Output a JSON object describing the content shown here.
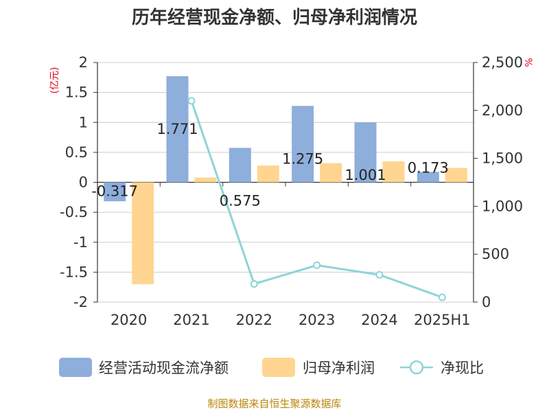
{
  "chart_data": {
    "type": "bar",
    "title": "历年经营现金净额、归母净利润情况",
    "categories": [
      "2020",
      "2021",
      "2022",
      "2023",
      "2024",
      "2025H1"
    ],
    "series": [
      {
        "name": "经营活动现金流净额",
        "kind": "bar",
        "axis": "left",
        "color": "#8eaedb",
        "values": [
          -0.317,
          1.771,
          0.575,
          1.275,
          1.001,
          0.173
        ],
        "labels": [
          "-0.317",
          "1.771",
          "0.575",
          "1.275",
          "1.001",
          "0.173"
        ]
      },
      {
        "name": "归母净利润",
        "kind": "bar",
        "axis": "left",
        "color": "#ffd591",
        "values": [
          -1.7,
          0.08,
          0.28,
          0.32,
          0.35,
          0.24
        ]
      },
      {
        "name": "净现比",
        "kind": "line",
        "axis": "right",
        "color": "#8dd4d8",
        "values": [
          null,
          2100,
          190,
          385,
          285,
          50
        ]
      }
    ],
    "left_axis": {
      "unit": "(亿元)",
      "min": -2,
      "max": 2,
      "ticks": [
        2,
        1.5,
        1,
        0.5,
        0,
        -0.5,
        -1,
        -1.5,
        -2
      ],
      "tick_labels": [
        "2",
        "1.5",
        "1",
        "0.5",
        "0",
        "-0.5",
        "-1",
        "-1.5",
        "-2"
      ]
    },
    "right_axis": {
      "unit": "%",
      "min": 0,
      "max": 2500,
      "ticks": [
        2500,
        2000,
        1500,
        1000,
        500,
        0
      ],
      "tick_labels": [
        "2,500",
        "2,000",
        "1,500",
        "1,000",
        "500",
        "0"
      ]
    },
    "grid": true,
    "legend_position": "bottom"
  },
  "source": "制图数据来自恒生聚源数据库"
}
